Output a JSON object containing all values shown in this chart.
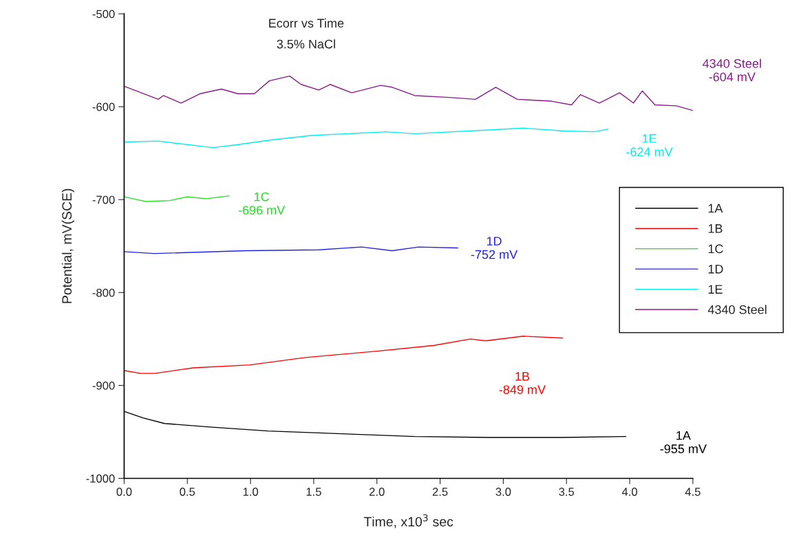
{
  "chart_data": {
    "type": "line",
    "title": "Ecorr vs Time",
    "subtitle": "3.5% NaCl",
    "xlabel": "Time, x10$^{3}$ sec",
    "ylabel": "Potential, mV(SCE)",
    "xlim": [
      0.0,
      4.5
    ],
    "xticks": [
      {
        "value": 0,
        "label": "0.0"
      },
      0.5,
      {
        "value": 1,
        "label": "1.0"
      },
      1.5,
      {
        "value": 2,
        "label": "2.0"
      },
      2.5,
      {
        "value": 3,
        "label": "3.0"
      },
      3.5,
      {
        "value": 4,
        "label": "4.0"
      },
      4.5
    ],
    "ylim": [
      -1000,
      -500
    ],
    "yticks": [
      -1000,
      -900,
      -800,
      -700,
      -600,
      -500
    ],
    "grid": false,
    "legend": "right",
    "marker": "none",
    "line_style": "solid",
    "series": [
      {
        "name": "1A",
        "color": "#000000",
        "x": [
          0.0,
          0.15,
          0.32,
          0.7,
          1.14,
          1.72,
          2.3,
          2.88,
          3.47,
          3.97
        ],
        "values": [
          -928,
          -935,
          -941,
          -945,
          -949,
          -952,
          -955,
          -956,
          -956,
          -955
        ]
      },
      {
        "name": "1B",
        "color": "#ff0000",
        "x": [
          0.0,
          0.13,
          0.24,
          0.55,
          0.99,
          1.43,
          2.01,
          2.45,
          2.74,
          2.86,
          3.16,
          3.47
        ],
        "values": [
          -884,
          -887,
          -887,
          -881,
          -878,
          -870,
          -863,
          -857,
          -850,
          -852,
          -847,
          -849
        ]
      },
      {
        "name": "1C",
        "color": "#22dd22",
        "x": [
          0.0,
          0.17,
          0.36,
          0.5,
          0.65,
          0.83
        ],
        "values": [
          -697,
          -702,
          -701,
          -697,
          -699,
          -696
        ]
      },
      {
        "name": "1D",
        "color": "#2222ee",
        "x": [
          0.0,
          0.24,
          0.96,
          1.54,
          1.88,
          2.12,
          2.33,
          2.64
        ],
        "values": [
          -756,
          -758,
          -755,
          -754,
          -751,
          -755,
          -751,
          -752
        ]
      },
      {
        "name": "1E",
        "color": "#00eeee",
        "x": [
          0.0,
          0.27,
          0.7,
          0.89,
          1.15,
          1.48,
          2.07,
          2.3,
          2.88,
          3.16,
          3.47,
          3.72,
          3.83
        ],
        "values": [
          -638,
          -637,
          -644,
          -641,
          -636,
          -631,
          -627,
          -629,
          -625,
          -623,
          -626,
          -627,
          -624
        ]
      },
      {
        "name": "4340 Steel",
        "color": "#8b1a8b",
        "x": [
          0.0,
          0.27,
          0.31,
          0.45,
          0.6,
          0.77,
          0.9,
          1.03,
          1.15,
          1.31,
          1.4,
          1.54,
          1.63,
          1.8,
          2.03,
          2.12,
          2.3,
          2.57,
          2.78,
          2.94,
          3.11,
          3.38,
          3.54,
          3.61,
          3.76,
          3.92,
          4.03,
          4.1,
          4.2,
          4.37,
          4.5
        ],
        "values": [
          -578,
          -592,
          -588,
          -596,
          -586,
          -581,
          -586,
          -586,
          -572,
          -567,
          -576,
          -582,
          -576,
          -585,
          -577,
          -579,
          -588,
          -590,
          -592,
          -579,
          -592,
          -594,
          -598,
          -587,
          -596,
          -585,
          -596,
          -583,
          -598,
          -599,
          -604
        ]
      }
    ],
    "annotations": [
      {
        "text": "1A\n-955 mV",
        "x": 3.97,
        "y": -955
      },
      "1B\n-849 mV",
      {
        "text": "1C\n-696 mV",
        "x": 0.83,
        "y": -696
      },
      {
        "text": "1D\n-752 mV",
        "x": 2.64,
        "y": -752
      },
      {
        "text": "1E\n-624 mV",
        "x": 3.83,
        "y": -624
      },
      {
        "text": "4340 Steel\n-604 mV",
        "x": 4.5,
        "y": -604
      }
    ]
  }
}
